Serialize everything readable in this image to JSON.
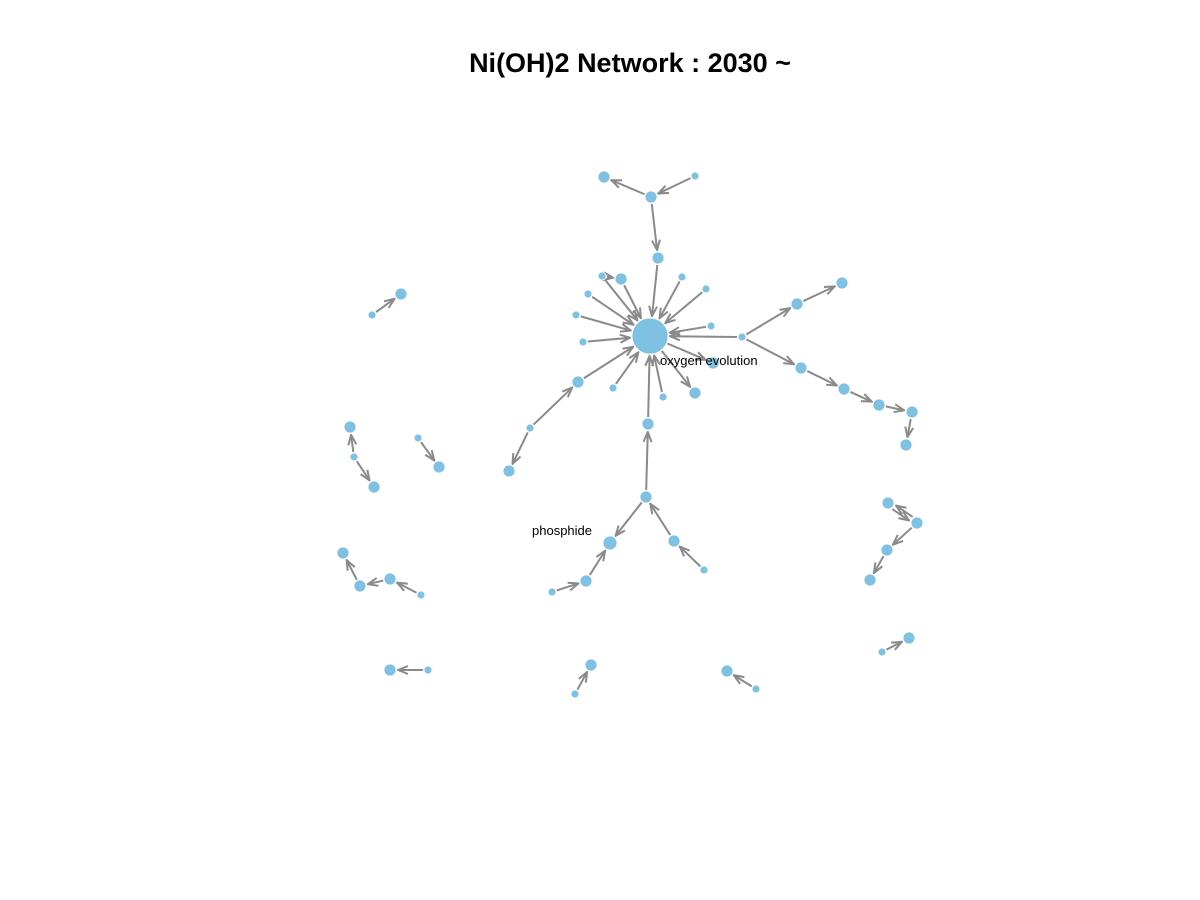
{
  "title": "Ni(OH)2 Network : 2030 ~",
  "colors": {
    "node": "#7fc1e3",
    "edge": "#8a8a8a",
    "background": "#ffffff",
    "text": "#000000"
  },
  "labels": {
    "oxygen_evolution": "oxygen evolution",
    "phosphide": "phosphide"
  }
}
